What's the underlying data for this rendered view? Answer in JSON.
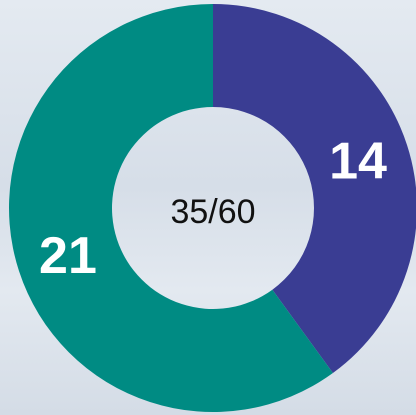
{
  "chart_data": {
    "type": "donut",
    "values": [
      14,
      21
    ],
    "colors": [
      "#3a3d93",
      "#008b83"
    ],
    "center_label": "35/60"
  }
}
